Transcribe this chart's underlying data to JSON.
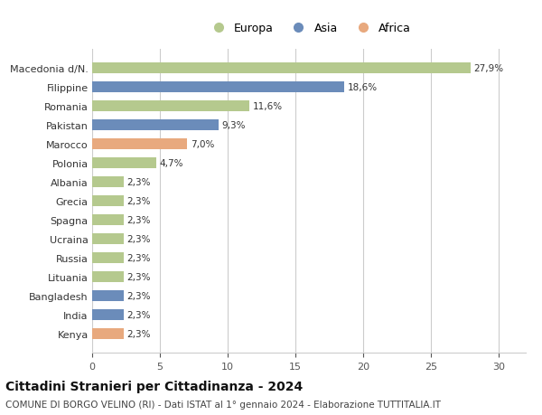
{
  "categories": [
    "Kenya",
    "India",
    "Bangladesh",
    "Lituania",
    "Russia",
    "Ucraina",
    "Spagna",
    "Grecia",
    "Albania",
    "Polonia",
    "Marocco",
    "Pakistan",
    "Romania",
    "Filippine",
    "Macedonia d/N."
  ],
  "values": [
    2.3,
    2.3,
    2.3,
    2.3,
    2.3,
    2.3,
    2.3,
    2.3,
    2.3,
    4.7,
    7.0,
    9.3,
    11.6,
    18.6,
    27.9
  ],
  "continents": [
    "Africa",
    "Asia",
    "Asia",
    "Europa",
    "Europa",
    "Europa",
    "Europa",
    "Europa",
    "Europa",
    "Europa",
    "Africa",
    "Asia",
    "Europa",
    "Asia",
    "Europa"
  ],
  "labels": [
    "2,3%",
    "2,3%",
    "2,3%",
    "2,3%",
    "2,3%",
    "2,3%",
    "2,3%",
    "2,3%",
    "2,3%",
    "4,7%",
    "7,0%",
    "9,3%",
    "11,6%",
    "18,6%",
    "27,9%"
  ],
  "colors": {
    "Europa": "#b5c98e",
    "Asia": "#6b8cba",
    "Africa": "#e8a97e"
  },
  "legend_labels": [
    "Europa",
    "Asia",
    "Africa"
  ],
  "legend_colors": [
    "#b5c98e",
    "#6b8cba",
    "#e8a97e"
  ],
  "xlim": [
    0,
    32
  ],
  "xticks": [
    0,
    5,
    10,
    15,
    20,
    25,
    30
  ],
  "title": "Cittadini Stranieri per Cittadinanza - 2024",
  "subtitle": "COMUNE DI BORGO VELINO (RI) - Dati ISTAT al 1° gennaio 2024 - Elaborazione TUTTITALIA.IT",
  "title_fontsize": 10,
  "subtitle_fontsize": 7.5,
  "label_fontsize": 7.5,
  "tick_fontsize": 8,
  "background_color": "#ffffff",
  "grid_color": "#cccccc"
}
